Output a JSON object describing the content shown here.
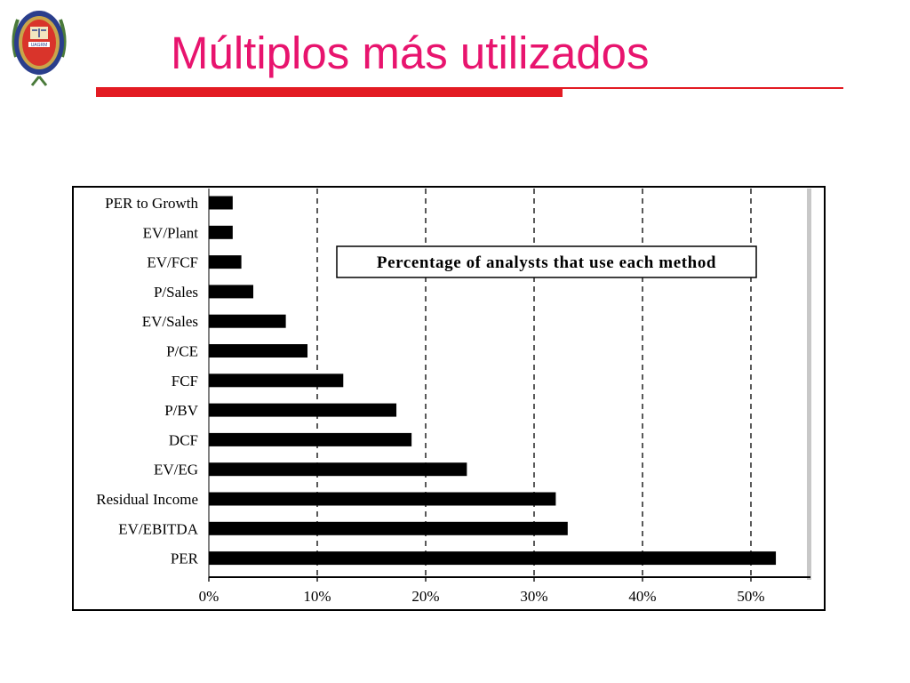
{
  "slide": {
    "title": "Múltiplos más utilizados"
  },
  "logo": {
    "icon": "university-crest-icon",
    "text": "UAGRM"
  },
  "colors": {
    "title": "#e8146e",
    "rule": "#e31b23",
    "bars": "#000000"
  },
  "chart_data": {
    "type": "bar",
    "orientation": "horizontal",
    "title": "Percentage of analysts that use each method",
    "xlabel": "",
    "ylabel": "",
    "xlim": [
      0,
      55
    ],
    "x_ticks": [
      0,
      10,
      20,
      30,
      40,
      50
    ],
    "x_tick_labels": [
      "0%",
      "10%",
      "20%",
      "30%",
      "40%",
      "50%"
    ],
    "grid": "vertical dashed",
    "categories": [
      "PER to Growth",
      "EV/Plant",
      "EV/FCF",
      "P/Sales",
      "EV/Sales",
      "P/CE",
      "FCF",
      "P/BV",
      "DCF",
      "EV/EG",
      "Residual Income",
      "EV/EBITDA",
      "PER"
    ],
    "values": [
      2.2,
      2.2,
      3.0,
      4.1,
      7.1,
      9.1,
      12.4,
      17.3,
      18.7,
      23.8,
      32.0,
      33.1,
      52.3
    ]
  }
}
